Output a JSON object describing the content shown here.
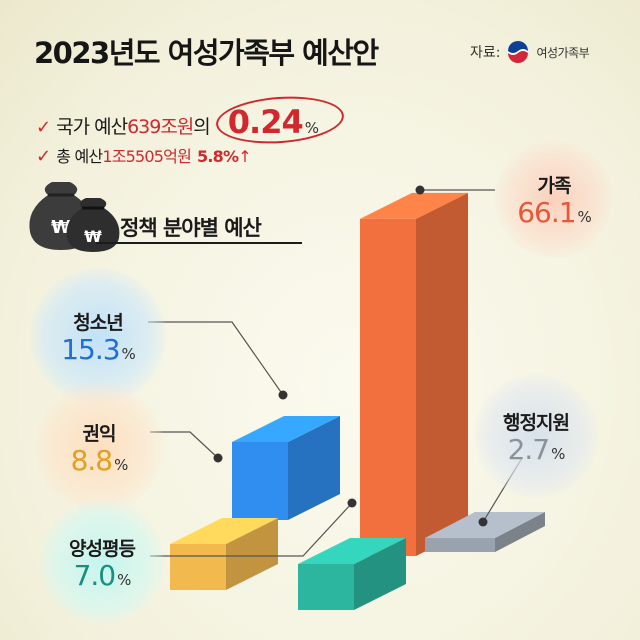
{
  "title": "2023년도 여성가족부 예산안",
  "source": {
    "label": "자료:",
    "org": "여성가족부"
  },
  "summary": {
    "line1_prefix": "국가 예산 ",
    "line1_amount": "639조원",
    "line1_suffix": "의",
    "line1_pct": "0.24",
    "line1_unit": "%",
    "line2_prefix": "총 예산 ",
    "line2_amount": "1조5505억원",
    "line2_pct": "5.8%",
    "line2_arrow": "↑"
  },
  "subtitle": "정책 분야별 예산",
  "chart_data": {
    "type": "bar",
    "title": "정책 분야별 예산",
    "unit": "%",
    "categories": [
      "가족",
      "청소년",
      "권익",
      "양성평등",
      "행정지원"
    ],
    "values": [
      66.1,
      15.3,
      8.8,
      7.0,
      2.7
    ]
  },
  "labels": [
    {
      "name": "가족",
      "value": "66.1",
      "unit": "%"
    },
    {
      "name": "청소년",
      "value": "15.3",
      "unit": "%"
    },
    {
      "name": "권익",
      "value": "8.8",
      "unit": "%"
    },
    {
      "name": "양성평등",
      "value": "7.0",
      "unit": "%"
    },
    {
      "name": "행정지원",
      "value": "2.7",
      "unit": "%"
    }
  ],
  "colors": {
    "family": "#f2703e",
    "youth": "#2f8ef0",
    "rights": "#f2b94f",
    "gender": "#2cb6a0",
    "admin": "#9aa3ad",
    "accent": "#d0282c"
  },
  "icons": [
    "check-icon",
    "money-bag-icon",
    "government-emblem-icon",
    "up-arrow-icon"
  ],
  "money_symbol": "₩"
}
